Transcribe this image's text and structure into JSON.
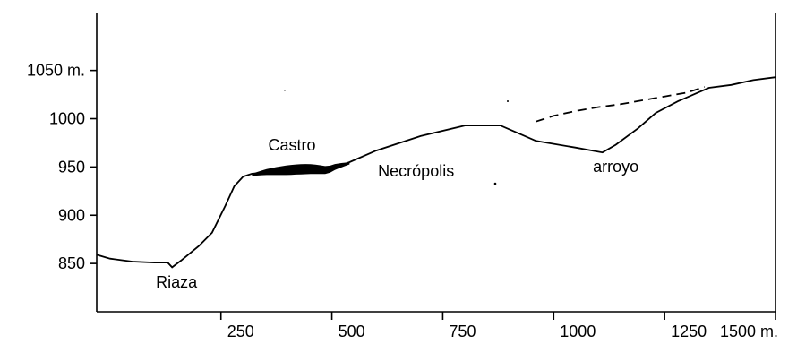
{
  "chart_data": {
    "type": "line",
    "title": "",
    "xlabel": "",
    "ylabel": "",
    "xlim": [
      -30,
      1500
    ],
    "ylim": [
      800,
      1110
    ],
    "x_ticks": [
      {
        "value": 250,
        "label": "250"
      },
      {
        "value": 500,
        "label": "500"
      },
      {
        "value": 750,
        "label": "750"
      },
      {
        "value": 1000,
        "label": "1000"
      },
      {
        "value": 1250,
        "label": "1250"
      },
      {
        "value": 1500,
        "label": "1500 m."
      }
    ],
    "y_ticks": [
      {
        "value": 850,
        "label": "850"
      },
      {
        "value": 900,
        "label": "900"
      },
      {
        "value": 950,
        "label": "950"
      },
      {
        "value": 1000,
        "label": "1000"
      },
      {
        "value": 1050,
        "label": "1050 m."
      }
    ],
    "grid": false,
    "series": [
      {
        "style": "solid",
        "x": [
          -30,
          0,
          50,
          100,
          130,
          140,
          160,
          200,
          230,
          260,
          280,
          300,
          320,
          350,
          400,
          450,
          490,
          510,
          540,
          600,
          700,
          800,
          880,
          920,
          960,
          1050,
          1110,
          1140,
          1190,
          1230,
          1280,
          1350,
          1400,
          1450,
          1500
        ],
        "y": [
          859,
          855,
          852,
          851,
          851,
          846,
          853,
          868,
          882,
          910,
          930,
          940,
          943,
          944,
          944,
          945,
          945,
          950,
          955,
          967,
          982,
          993,
          993,
          985,
          977,
          970,
          965,
          973,
          990,
          1006,
          1018,
          1032,
          1035,
          1040,
          1043
        ]
      },
      {
        "style": "dashed",
        "x": [
          960,
          1000,
          1050,
          1100,
          1150,
          1200,
          1250,
          1300,
          1340
        ],
        "y": [
          997,
          1003,
          1008,
          1012,
          1015,
          1019,
          1023,
          1027,
          1033
        ]
      }
    ],
    "shaded_segments": [
      {
        "label": "Castro",
        "x_start": 320,
        "x_end": 540
      }
    ],
    "annotations": [
      {
        "text": "Riaza",
        "x": 150,
        "y": 825
      },
      {
        "text": "Castro",
        "x": 410,
        "y": 967
      },
      {
        "text": "Necrópolis",
        "x": 690,
        "y": 940
      },
      {
        "text": "arroyo",
        "x": 1140,
        "y": 945
      }
    ]
  }
}
